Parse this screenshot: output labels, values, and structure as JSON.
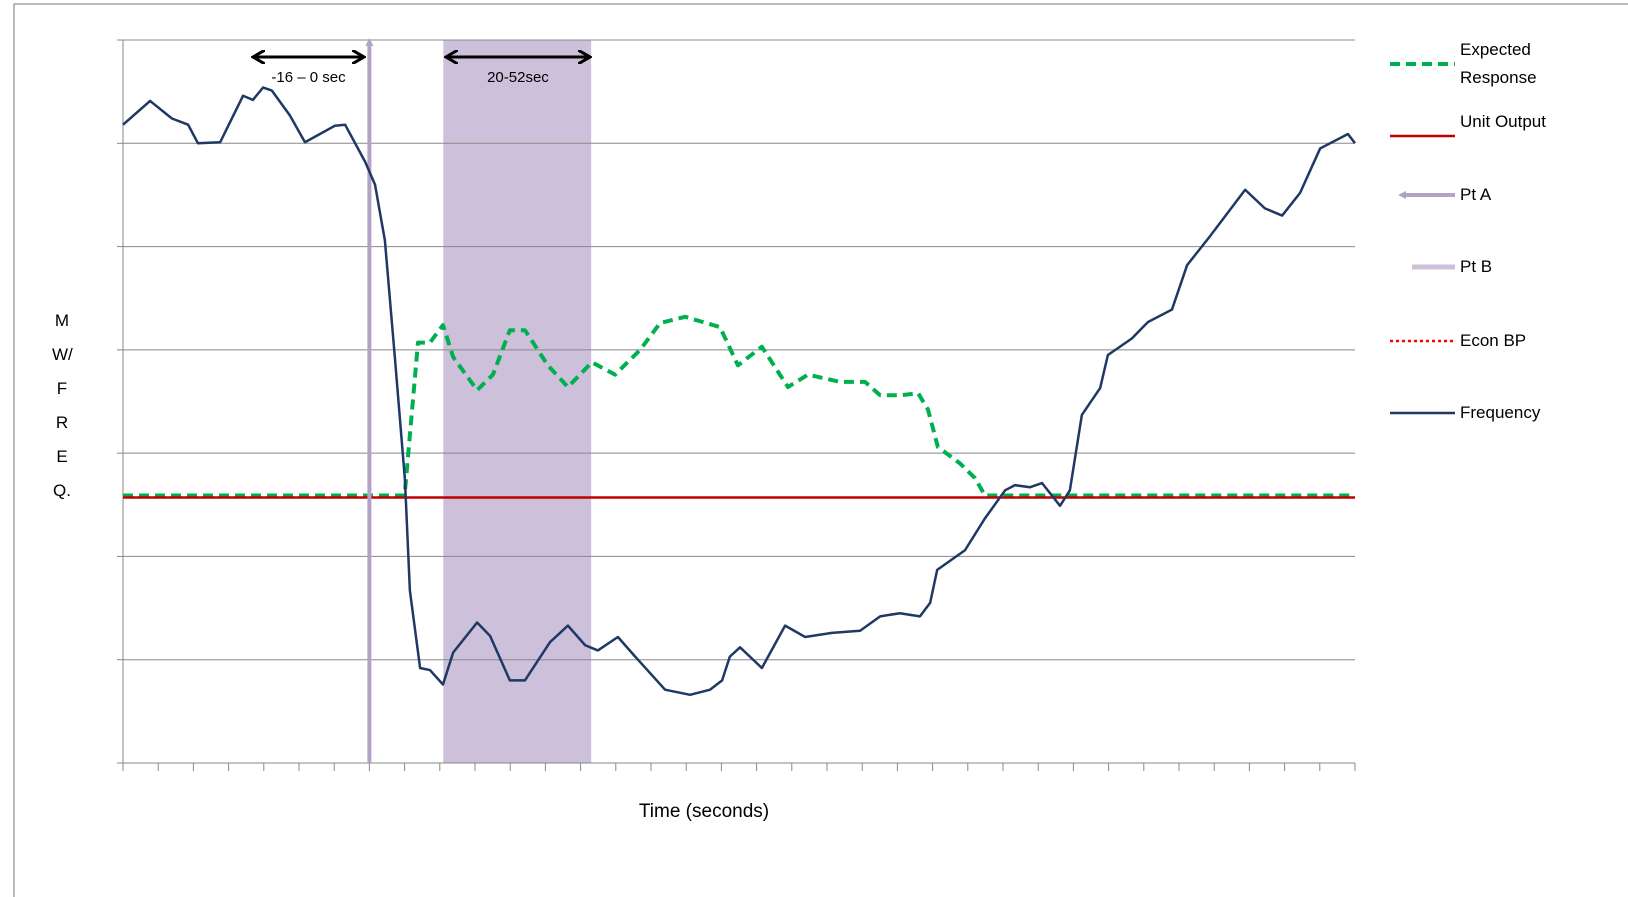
{
  "chart_data": {
    "type": "line",
    "x_label": "Time (seconds)",
    "y_label": "MW/FREQ.",
    "xlim": [
      0,
      350
    ],
    "xticks": [
      0,
      10,
      20,
      30,
      40,
      50,
      60,
      70,
      80,
      90,
      100,
      110,
      120,
      130,
      140,
      150,
      160,
      170,
      180,
      190,
      200,
      210,
      220,
      230,
      240,
      250,
      260,
      270,
      280,
      290,
      300,
      310,
      320,
      330,
      340,
      350
    ],
    "ylim": [
      0,
      700
    ],
    "yticks": [
      0,
      100,
      200,
      300,
      400,
      500,
      600,
      700
    ],
    "grid": true,
    "annotations": [
      {
        "text": "-16 – 0 sec",
        "x": [
          37.5,
          67.9
        ]
      },
      {
        "text": "20-52sec",
        "x": [
          92.3,
          132.1
        ]
      }
    ],
    "series": [
      {
        "name": "Expected Response",
        "color": "#00b050",
        "style": "dashed",
        "x": [
          0,
          80,
          83.8,
          87.2,
          90.9,
          93.8,
          100.6,
          105.1,
          109.9,
          114.2,
          120.7,
          126.4,
          133.2,
          139.8,
          146.9,
          152.6,
          159.7,
          169.6,
          174.7,
          181.5,
          188.9,
          194.6,
          203.7,
          210.8,
          215.1,
          220.7,
          225.9,
          228.7,
          231.5,
          237.8,
          242,
          244.9,
          350
        ],
        "values": [
          259,
          259,
          407,
          407,
          424,
          393,
          361,
          376,
          419,
          419,
          385,
          364,
          388,
          376,
          400,
          426,
          432,
          422,
          385,
          403,
          364,
          376,
          369,
          369,
          356,
          356,
          358,
          342,
          306,
          290,
          276,
          259,
          259
        ]
      },
      {
        "name": "Unit Output",
        "color": "#c00000",
        "style": "solid",
        "x": [
          0,
          350
        ],
        "values": [
          257,
          257
        ]
      },
      {
        "name": "Pt A",
        "color": "#b3a2c7",
        "style": "arrow",
        "x": [
          70
        ]
      },
      {
        "name": "Pt B",
        "color": "#ccc0da",
        "style": "band",
        "x": [
          91,
          133
        ]
      },
      {
        "name": "Econ BP",
        "color": "#ff0000",
        "style": "dotted"
      },
      {
        "name": "Frequency",
        "color": "#1f3864",
        "style": "solid",
        "x": [
          0,
          7.7,
          13.9,
          18.5,
          21.3,
          27.6,
          34.1,
          36.9,
          39.8,
          42.3,
          47.4,
          51.7,
          60.2,
          63.1,
          68.8,
          71.6,
          74.4,
          77.3,
          80.1,
          81.5,
          84.4,
          87.2,
          90.9,
          93.8,
          100.6,
          104.3,
          109.9,
          114.2,
          121.3,
          126.4,
          131.3,
          134.9,
          140.6,
          145.5,
          154,
          161.1,
          166.8,
          170.2,
          172.4,
          175.3,
          181.5,
          188.1,
          193.8,
          201.4,
          209.4,
          215.1,
          220.7,
          226.4,
          229.3,
          231.3,
          239.2,
          244.9,
          250.6,
          253.4,
          257.7,
          261.1,
          266.2,
          269,
          272.4,
          277.6,
          279.8,
          286.6,
          291.2,
          298,
          302.3,
          308.8,
          318.8,
          324.4,
          329.3,
          334.4,
          340.1,
          348,
          350
        ],
        "values": [
          618,
          641,
          624,
          618,
          600,
          601,
          646,
          642,
          654,
          651,
          627,
          601,
          617,
          618,
          582,
          560,
          506,
          390,
          274,
          167,
          92,
          90,
          76,
          107,
          136,
          123,
          80,
          80,
          117,
          133,
          114,
          109,
          122,
          103,
          71,
          66,
          71,
          80,
          103,
          112,
          92,
          133,
          122,
          126,
          128,
          142,
          145,
          142,
          155,
          187,
          206,
          237,
          264,
          269,
          267,
          271,
          249,
          264,
          337,
          363,
          395,
          411,
          427,
          439,
          482,
          510,
          555,
          537,
          530,
          552,
          595,
          609,
          600
        ]
      }
    ]
  }
}
